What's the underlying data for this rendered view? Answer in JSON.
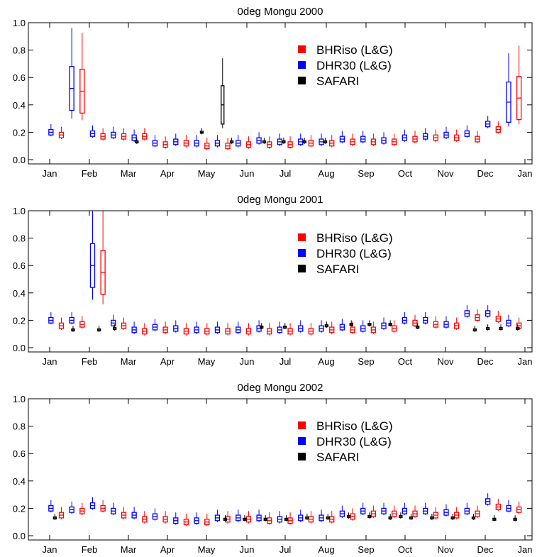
{
  "colors": {
    "BHRiso (L&G)": "#ff0000",
    "DHR30 (L&G)": "#0000ff",
    "SAFARI": "#000000"
  },
  "chart_data": [
    {
      "type": "box",
      "title": "0deg Mongu 2000",
      "xlabel": "",
      "ylabel": "",
      "ylim": [
        0.0,
        1.0
      ],
      "yticks": [
        "0.0",
        "0.2",
        "0.4",
        "0.6",
        "0.8",
        "1.0"
      ],
      "xticks": [
        "Jan",
        "Feb",
        "Mar",
        "Apr",
        "May",
        "Jun",
        "Jul",
        "Aug",
        "Sep",
        "Oct",
        "Nov",
        "Dec",
        "Jan"
      ],
      "legend": {
        "position": "top-right",
        "entries": [
          "BHRiso (L&G)",
          "DHR30 (L&G)",
          "SAFARI"
        ]
      },
      "series": [
        {
          "name": "DHR30 (L&G)",
          "x": [
            1,
            17,
            33,
            49,
            65,
            81,
            97,
            113,
            129,
            145,
            161,
            177,
            193,
            209,
            225,
            241,
            257,
            273,
            289,
            305,
            321,
            337,
            353
          ],
          "values": [
            0.2,
            0.52,
            0.19,
            0.18,
            0.16,
            0.12,
            0.13,
            0.12,
            0.12,
            0.12,
            0.14,
            0.13,
            0.13,
            0.13,
            0.15,
            0.15,
            0.14,
            0.16,
            0.17,
            0.18,
            0.19,
            0.26,
            0.42
          ]
        },
        {
          "name": "BHRiso (L&G)",
          "x": [
            9,
            25,
            41,
            57,
            73,
            89,
            105,
            121,
            137,
            153,
            169,
            185,
            201,
            217,
            233,
            249,
            265,
            281,
            297,
            313,
            329,
            345,
            361
          ],
          "values": [
            0.18,
            0.5,
            0.17,
            0.17,
            0.17,
            0.11,
            0.12,
            0.1,
            0.1,
            0.11,
            0.11,
            0.11,
            0.12,
            0.12,
            0.13,
            0.13,
            0.13,
            0.15,
            0.16,
            0.16,
            0.15,
            0.22,
            0.45
          ]
        },
        {
          "name": "SAFARI",
          "x": [
            67,
            117,
            133,
            140,
            165,
            180,
            196,
            212
          ],
          "values": [
            0.13,
            0.2,
            0.4,
            0.13,
            0.13,
            0.13,
            0.13,
            0.13
          ]
        }
      ]
    },
    {
      "type": "box",
      "title": "0deg Mongu 2001",
      "xlabel": "",
      "ylabel": "",
      "ylim": [
        0.0,
        1.0
      ],
      "yticks": [
        "0.0",
        "0.2",
        "0.4",
        "0.6",
        "0.8",
        "1.0"
      ],
      "xticks": [
        "Jan",
        "Feb",
        "Mar",
        "Apr",
        "May",
        "Jun",
        "Jul",
        "Aug",
        "Sep",
        "Oct",
        "Nov",
        "Dec",
        "Jan"
      ],
      "legend": {
        "position": "top-right",
        "entries": [
          "BHRiso (L&G)",
          "DHR30 (L&G)",
          "SAFARI"
        ]
      },
      "series": [
        {
          "name": "DHR30 (L&G)",
          "x": [
            1,
            17,
            33,
            49,
            65,
            81,
            97,
            113,
            129,
            145,
            161,
            177,
            193,
            209,
            225,
            241,
            257,
            273,
            289,
            305,
            321,
            337,
            353
          ],
          "values": [
            0.2,
            0.2,
            0.6,
            0.18,
            0.13,
            0.15,
            0.14,
            0.13,
            0.13,
            0.13,
            0.14,
            0.13,
            0.14,
            0.14,
            0.15,
            0.14,
            0.16,
            0.2,
            0.2,
            0.17,
            0.25,
            0.25,
            0.18
          ]
        },
        {
          "name": "BHRiso (L&G)",
          "x": [
            9,
            25,
            41,
            57,
            73,
            89,
            105,
            121,
            137,
            153,
            169,
            185,
            201,
            217,
            233,
            249,
            265,
            281,
            297,
            313,
            329,
            345,
            361
          ],
          "values": [
            0.16,
            0.17,
            0.55,
            0.16,
            0.12,
            0.13,
            0.12,
            0.12,
            0.12,
            0.12,
            0.12,
            0.12,
            0.12,
            0.13,
            0.13,
            0.13,
            0.14,
            0.18,
            0.17,
            0.16,
            0.22,
            0.21,
            0.16
          ]
        },
        {
          "name": "SAFARI",
          "x": [
            18,
            38,
            50,
            163,
            181,
            213,
            232,
            246,
            262,
            283,
            327,
            337,
            347,
            360
          ],
          "values": [
            0.13,
            0.13,
            0.14,
            0.15,
            0.15,
            0.16,
            0.17,
            0.17,
            0.17,
            0.15,
            0.13,
            0.14,
            0.14,
            0.14
          ]
        }
      ]
    },
    {
      "type": "box",
      "title": "0deg Mongu 2002",
      "xlabel": "",
      "ylabel": "",
      "ylim": [
        0.0,
        1.0
      ],
      "yticks": [
        "0.0",
        "0.2",
        "0.4",
        "0.6",
        "0.8",
        "1.0"
      ],
      "xticks": [
        "Jan",
        "Feb",
        "Mar",
        "Apr",
        "May",
        "Jun",
        "Jul",
        "Aug",
        "Sep",
        "Oct",
        "Nov",
        "Dec",
        "Jan"
      ],
      "legend": {
        "position": "top-right",
        "entries": [
          "BHRiso (L&G)",
          "DHR30 (L&G)",
          "SAFARI"
        ]
      },
      "series": [
        {
          "name": "DHR30 (L&G)",
          "x": [
            1,
            17,
            33,
            49,
            65,
            81,
            97,
            113,
            129,
            145,
            161,
            177,
            193,
            209,
            225,
            241,
            257,
            273,
            289,
            305,
            321,
            337,
            353
          ],
          "values": [
            0.2,
            0.19,
            0.22,
            0.18,
            0.15,
            0.14,
            0.11,
            0.11,
            0.13,
            0.13,
            0.13,
            0.12,
            0.13,
            0.13,
            0.16,
            0.18,
            0.18,
            0.18,
            0.18,
            0.17,
            0.18,
            0.25,
            0.2
          ]
        },
        {
          "name": "BHRiso (L&G)",
          "x": [
            9,
            25,
            41,
            57,
            73,
            89,
            105,
            121,
            137,
            153,
            169,
            185,
            201,
            217,
            233,
            249,
            265,
            281,
            297,
            313,
            329,
            345,
            361
          ],
          "values": [
            0.15,
            0.18,
            0.2,
            0.15,
            0.12,
            0.12,
            0.1,
            0.1,
            0.12,
            0.12,
            0.11,
            0.11,
            0.12,
            0.12,
            0.14,
            0.16,
            0.16,
            0.16,
            0.15,
            0.15,
            0.16,
            0.21,
            0.19
          ]
        },
        {
          "name": "SAFARI",
          "x": [
            4,
            135,
            150,
            166,
            182,
            198,
            214,
            230,
            246,
            262,
            270,
            278,
            294,
            310,
            326,
            342,
            358
          ],
          "values": [
            0.13,
            0.12,
            0.12,
            0.12,
            0.12,
            0.13,
            0.13,
            0.14,
            0.14,
            0.13,
            0.14,
            0.13,
            0.13,
            0.13,
            0.13,
            0.12,
            0.12
          ]
        }
      ]
    }
  ]
}
